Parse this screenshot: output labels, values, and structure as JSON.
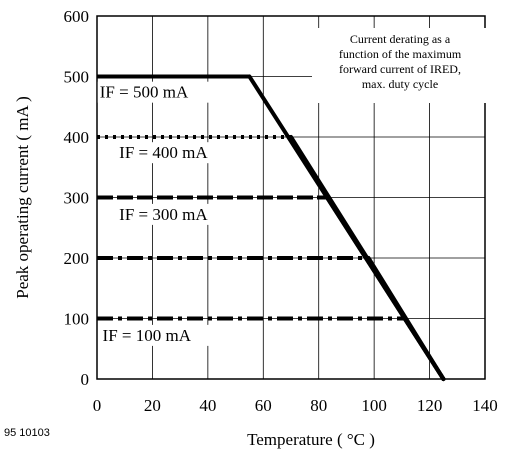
{
  "figure_id": "95 10103",
  "chart_data": {
    "type": "line",
    "xlabel": "Temperature ( °C )",
    "ylabel": "Peak operating current ( mA )",
    "xlim": [
      0,
      140
    ],
    "ylim": [
      0,
      600
    ],
    "xticks": [
      0,
      20,
      40,
      60,
      80,
      100,
      120,
      140
    ],
    "yticks": [
      0,
      100,
      200,
      300,
      400,
      500,
      600
    ],
    "grid": true,
    "annotation": [
      "Current derating as a",
      "function of the maximum",
      "forward current of IRED,",
      "max. duty cycle"
    ],
    "series": [
      {
        "name": "IF = 500 mA",
        "style": "solid",
        "x": [
          0,
          55,
          125
        ],
        "y": [
          500,
          500,
          0
        ]
      },
      {
        "name": "IF = 400 mA",
        "style": "dotted",
        "x": [
          0,
          70,
          125
        ],
        "y": [
          400,
          400,
          0
        ]
      },
      {
        "name": "IF = 300 mA",
        "style": "dashed",
        "x": [
          0,
          83,
          125
        ],
        "y": [
          300,
          300,
          0
        ]
      },
      {
        "name": "",
        "style": "dashdot",
        "x": [
          0,
          98,
          125
        ],
        "y": [
          200,
          200,
          0
        ]
      },
      {
        "name": "IF = 100 mA",
        "style": "dashdot",
        "x": [
          0,
          111,
          125
        ],
        "y": [
          100,
          100,
          0
        ]
      }
    ],
    "curve_labels": [
      {
        "text": "IF = 500 mA",
        "x": 1,
        "y": 465
      },
      {
        "text": "IF = 400 mA",
        "x": 8,
        "y": 365
      },
      {
        "text": "IF = 300 mA",
        "x": 8,
        "y": 263
      },
      {
        "text": "IF = 100 mA",
        "x": 2,
        "y": 63
      }
    ]
  }
}
